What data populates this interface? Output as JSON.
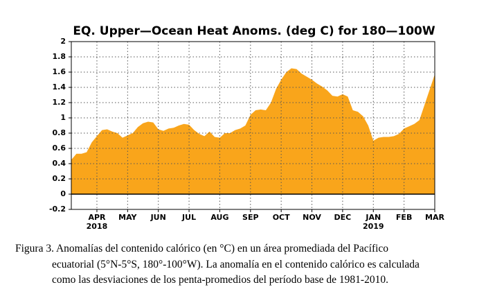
{
  "chart_data": {
    "type": "area",
    "title": "EQ. Upper—Ocean Heat Anoms. (deg C) for 180—100W",
    "categories": [
      null,
      null,
      null,
      null,
      null,
      "APR",
      null,
      null,
      null,
      null,
      null,
      "MAY",
      null,
      null,
      null,
      null,
      null,
      "JUN",
      null,
      null,
      null,
      null,
      null,
      "JUL",
      null,
      null,
      null,
      null,
      null,
      "AUG",
      null,
      null,
      null,
      null,
      null,
      "SEP",
      null,
      null,
      null,
      null,
      null,
      "OCT",
      null,
      null,
      null,
      null,
      null,
      "NOV",
      null,
      null,
      null,
      null,
      null,
      "DEC",
      null,
      null,
      null,
      null,
      null,
      "JAN",
      null,
      null,
      null,
      null,
      null,
      "FEB",
      null,
      null,
      null,
      null,
      null,
      "MAR"
    ],
    "x_sublabels": [
      null,
      null,
      null,
      null,
      null,
      "2018",
      null,
      null,
      null,
      null,
      null,
      null,
      null,
      null,
      null,
      null,
      null,
      null,
      null,
      null,
      null,
      null,
      null,
      null,
      null,
      null,
      null,
      null,
      null,
      null,
      null,
      null,
      null,
      null,
      null,
      null,
      null,
      null,
      null,
      null,
      null,
      null,
      null,
      null,
      null,
      null,
      null,
      null,
      null,
      null,
      null,
      null,
      null,
      null,
      null,
      null,
      null,
      null,
      null,
      "2019",
      null,
      null,
      null,
      null,
      null,
      null,
      null,
      null,
      null,
      null,
      null,
      null
    ],
    "values": [
      0.45,
      0.53,
      0.53,
      0.55,
      0.68,
      0.76,
      0.84,
      0.85,
      0.82,
      0.8,
      0.74,
      0.77,
      0.8,
      0.88,
      0.93,
      0.95,
      0.94,
      0.85,
      0.83,
      0.86,
      0.87,
      0.9,
      0.92,
      0.91,
      0.84,
      0.79,
      0.76,
      0.82,
      0.75,
      0.74,
      0.8,
      0.8,
      0.84,
      0.86,
      0.9,
      1.04,
      1.1,
      1.11,
      1.1,
      1.2,
      1.38,
      1.5,
      1.6,
      1.65,
      1.64,
      1.58,
      1.54,
      1.5,
      1.45,
      1.41,
      1.36,
      1.29,
      1.28,
      1.31,
      1.28,
      1.1,
      1.08,
      1.02,
      0.9,
      0.7,
      0.74,
      0.75,
      0.75,
      0.76,
      0.79,
      0.86,
      0.89,
      0.92,
      0.97,
      1.17,
      1.37,
      1.57
    ],
    "color": "#f9a51b",
    "ylim": [
      -0.2,
      2
    ],
    "yticks": [
      -0.2,
      0,
      0.2,
      0.4,
      0.6,
      0.8,
      1,
      1.2,
      1.4,
      1.6,
      1.8,
      2
    ],
    "grid": true
  },
  "caption": [
    "Figura 3. Anomalías del contenido calórico (en °C) en un área promediada del Pacífico",
    "ecuatorial (5°N-5°S, 180°-100°W). La anomalía en el contenido calórico es calculada",
    "como las desviaciones de los penta-promedios del período base de 1981-2010."
  ]
}
